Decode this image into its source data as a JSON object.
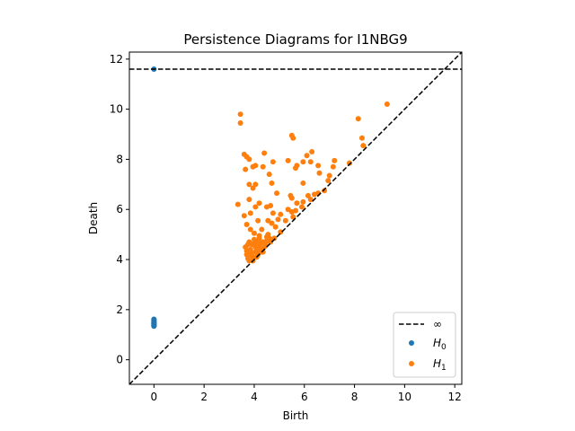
{
  "chart_data": {
    "type": "scatter",
    "title": "Persistence Diagrams for I1NBG9",
    "xlabel": "Birth",
    "ylabel": "Death",
    "xlim": [
      -0.98,
      12.28
    ],
    "ylim": [
      -0.98,
      12.28
    ],
    "xticks": [
      0,
      2,
      4,
      6,
      8,
      10,
      12
    ],
    "yticks": [
      0,
      2,
      4,
      6,
      8,
      10,
      12
    ],
    "infinity_value": 11.6,
    "legend_position": "lower-right",
    "legend": [
      {
        "label": "∞",
        "marker": "dashed-line"
      },
      {
        "label": "H",
        "sub": "0",
        "marker": "dot"
      },
      {
        "label": "H",
        "sub": "1",
        "marker": "dot"
      }
    ],
    "colors": {
      "H0": "#1f77b4",
      "H1": "#ff7f0e",
      "diagonal": "#000000"
    },
    "series": [
      {
        "key": "H0",
        "points": [
          [
            0,
            11.6
          ],
          [
            0,
            1.62
          ],
          [
            0,
            1.58
          ],
          [
            0,
            1.55
          ],
          [
            0,
            1.52
          ],
          [
            0,
            1.49
          ],
          [
            0,
            1.46
          ],
          [
            0,
            1.44
          ],
          [
            0,
            1.42
          ],
          [
            0,
            1.4
          ],
          [
            0,
            1.38
          ],
          [
            0,
            1.36
          ],
          [
            0,
            1.34
          ]
        ]
      },
      {
        "key": "H1",
        "points": [
          [
            9.3,
            10.2
          ],
          [
            8.15,
            9.62
          ],
          [
            8.3,
            8.85
          ],
          [
            8.35,
            8.55
          ],
          [
            7.8,
            7.85
          ],
          [
            3.45,
            9.8
          ],
          [
            3.45,
            9.45
          ],
          [
            5.5,
            8.95
          ],
          [
            5.55,
            8.85
          ],
          [
            3.35,
            6.2
          ],
          [
            3.6,
            8.2
          ],
          [
            3.7,
            8.1
          ],
          [
            3.8,
            8.0
          ],
          [
            3.65,
            7.6
          ],
          [
            4.4,
            8.25
          ],
          [
            3.95,
            7.7
          ],
          [
            4.05,
            7.75
          ],
          [
            4.35,
            7.7
          ],
          [
            4.6,
            7.4
          ],
          [
            4.75,
            7.9
          ],
          [
            5.35,
            7.95
          ],
          [
            5.7,
            7.75
          ],
          [
            5.65,
            7.65
          ],
          [
            5.95,
            7.9
          ],
          [
            6.1,
            8.15
          ],
          [
            6.3,
            8.3
          ],
          [
            6.25,
            7.9
          ],
          [
            6.55,
            7.75
          ],
          [
            6.6,
            7.45
          ],
          [
            7.2,
            7.95
          ],
          [
            7.15,
            7.7
          ],
          [
            7.0,
            7.35
          ],
          [
            6.95,
            7.15
          ],
          [
            5.95,
            7.05
          ],
          [
            3.8,
            7.0
          ],
          [
            3.95,
            6.85
          ],
          [
            4.05,
            7.0
          ],
          [
            4.7,
            7.05
          ],
          [
            3.8,
            6.4
          ],
          [
            4.05,
            6.1
          ],
          [
            4.2,
            6.25
          ],
          [
            4.5,
            6.1
          ],
          [
            4.9,
            6.65
          ],
          [
            5.45,
            6.55
          ],
          [
            5.5,
            6.45
          ],
          [
            5.7,
            6.25
          ],
          [
            5.95,
            6.3
          ],
          [
            6.15,
            6.55
          ],
          [
            6.25,
            6.4
          ],
          [
            6.4,
            6.6
          ],
          [
            6.55,
            6.65
          ],
          [
            6.8,
            6.75
          ],
          [
            3.6,
            5.75
          ],
          [
            3.85,
            5.85
          ],
          [
            4.15,
            5.55
          ],
          [
            4.65,
            6.15
          ],
          [
            4.75,
            5.85
          ],
          [
            5.05,
            5.8
          ],
          [
            4.95,
            5.6
          ],
          [
            5.35,
            6.0
          ],
          [
            5.5,
            5.9
          ],
          [
            5.65,
            5.95
          ],
          [
            5.9,
            6.1
          ],
          [
            3.7,
            5.4
          ],
          [
            3.85,
            5.2
          ],
          [
            4.0,
            5.05
          ],
          [
            4.3,
            5.2
          ],
          [
            4.55,
            5.55
          ],
          [
            4.7,
            5.45
          ],
          [
            4.85,
            5.3
          ],
          [
            5.25,
            5.55
          ],
          [
            5.55,
            5.7
          ],
          [
            4.55,
            5.0
          ],
          [
            4.8,
            4.85
          ],
          [
            5.05,
            5.1
          ],
          [
            4.2,
            4.85
          ],
          [
            3.65,
            4.5
          ],
          [
            3.7,
            4.35
          ],
          [
            3.7,
            4.2
          ],
          [
            3.75,
            4.05
          ],
          [
            3.8,
            3.95
          ],
          [
            3.85,
            4.4
          ],
          [
            3.9,
            4.25
          ],
          [
            3.95,
            4.1
          ],
          [
            4.0,
            4.65
          ],
          [
            4.05,
            4.5
          ],
          [
            4.1,
            4.35
          ],
          [
            4.15,
            4.2
          ],
          [
            4.2,
            4.55
          ],
          [
            4.25,
            4.4
          ],
          [
            4.3,
            4.3
          ],
          [
            4.35,
            4.7
          ],
          [
            4.4,
            4.5
          ],
          [
            4.45,
            4.6
          ],
          [
            4.5,
            4.75
          ],
          [
            4.6,
            4.85
          ],
          [
            4.65,
            4.7
          ],
          [
            4.7,
            4.8
          ],
          [
            3.9,
            4.6
          ],
          [
            4.0,
            4.8
          ],
          [
            4.1,
            4.6
          ],
          [
            4.15,
            4.75
          ],
          [
            4.25,
            4.65
          ],
          [
            4.3,
            4.45
          ],
          [
            4.35,
            4.3
          ],
          [
            3.95,
            3.95
          ],
          [
            4.1,
            4.1
          ],
          [
            3.8,
            4.2
          ],
          [
            3.75,
            4.6
          ],
          [
            3.8,
            4.7
          ],
          [
            4.05,
            4.3
          ],
          [
            4.2,
            4.95
          ],
          [
            4.5,
            4.9
          ]
        ]
      }
    ]
  }
}
